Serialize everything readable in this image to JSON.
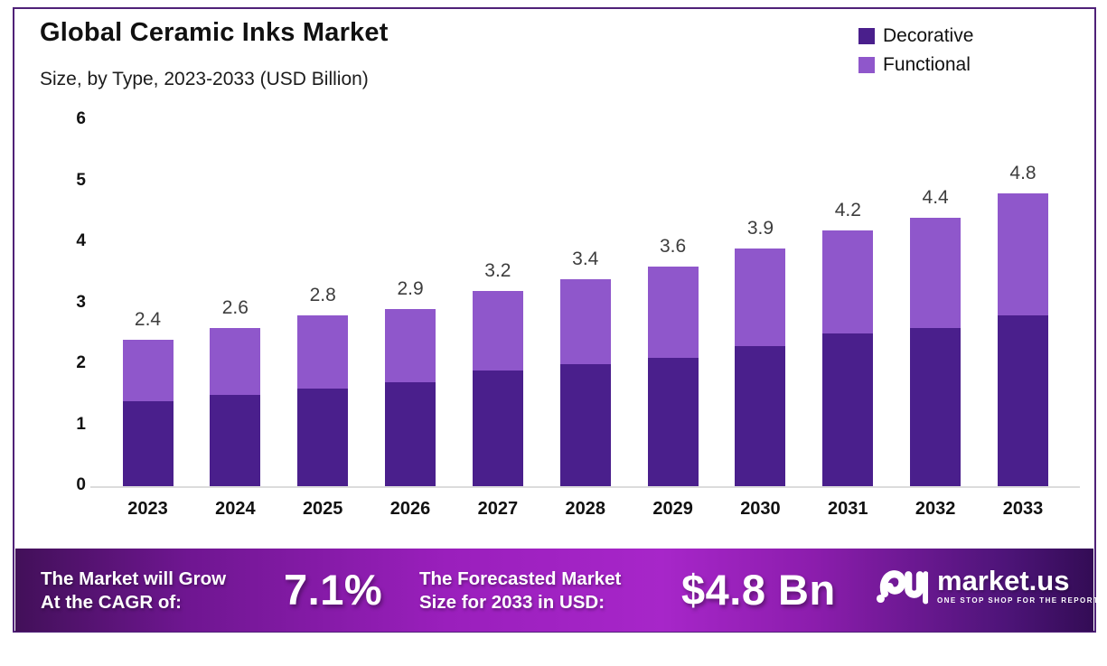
{
  "header": {
    "title": "Global Ceramic Inks Market",
    "subtitle": "Size, by Type, 2023-2033 (USD Billion)"
  },
  "legend": {
    "items": [
      {
        "label": "Decorative",
        "color": "#4a1f8c"
      },
      {
        "label": "Functional",
        "color": "#8f57cb"
      }
    ]
  },
  "chart_data": {
    "type": "bar",
    "stacked": true,
    "categories": [
      "2023",
      "2024",
      "2025",
      "2026",
      "2027",
      "2028",
      "2029",
      "2030",
      "2031",
      "2032",
      "2033"
    ],
    "series": [
      {
        "name": "Decorative",
        "color": "#4a1f8c",
        "values": [
          1.4,
          1.5,
          1.6,
          1.7,
          1.9,
          2.0,
          2.1,
          2.3,
          2.5,
          2.6,
          2.8
        ]
      },
      {
        "name": "Functional",
        "color": "#8f57cb",
        "values": [
          1.0,
          1.1,
          1.2,
          1.2,
          1.3,
          1.4,
          1.5,
          1.6,
          1.7,
          1.8,
          2.0
        ]
      }
    ],
    "totals": [
      2.4,
      2.6,
      2.8,
      2.9,
      3.2,
      3.4,
      3.6,
      3.9,
      4.2,
      4.4,
      4.8
    ],
    "title": "Global Ceramic Inks Market Size, by Type, 2023-2033 (USD Billion)",
    "xlabel": "",
    "ylabel": "",
    "ylim": [
      0,
      6
    ],
    "yticks": [
      0,
      1,
      2,
      3,
      4,
      5,
      6
    ],
    "grid": false,
    "legend_position": "top-right",
    "total_labels_shown": true
  },
  "banner": {
    "cagr_label_line1": "The Market will Grow",
    "cagr_label_line2": "At the CAGR of:",
    "cagr_value": "7.1%",
    "forecast_label_line1": "The Forecasted Market",
    "forecast_label_line2": "Size for 2033 in USD:",
    "forecast_value": "$4.8 Bn",
    "logo_text": "market.us",
    "logo_tagline": "ONE STOP SHOP FOR THE REPORTS"
  },
  "colors": {
    "decorative": "#4a1f8c",
    "functional": "#8f57cb",
    "card_border": "#4f2178",
    "axis_line": "#dcdcdc",
    "banner_gradient_mid": "#a726c9",
    "banner_gradient_edge": "#3a0f5c"
  }
}
